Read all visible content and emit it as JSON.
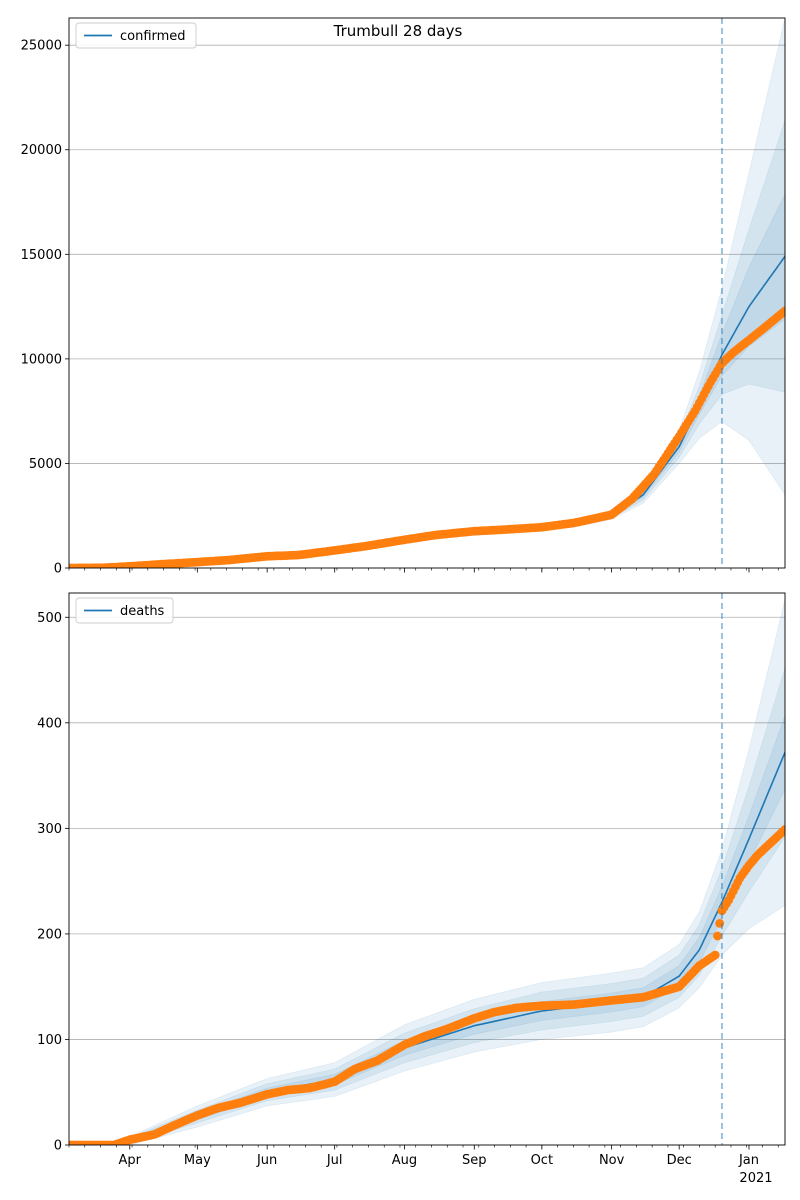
{
  "figure": {
    "title": "Trumbull 28 days",
    "x_start": "2020-03-05",
    "x_end": "2021-01-17",
    "forecast_start": "2020-12-20",
    "months": [
      {
        "label": "Apr",
        "date": "2020-04-01"
      },
      {
        "label": "May",
        "date": "2020-05-01"
      },
      {
        "label": "Jun",
        "date": "2020-06-01"
      },
      {
        "label": "Jul",
        "date": "2020-07-01"
      },
      {
        "label": "Aug",
        "date": "2020-08-01"
      },
      {
        "label": "Sep",
        "date": "2020-09-01"
      },
      {
        "label": "Oct",
        "date": "2020-10-01"
      },
      {
        "label": "Nov",
        "date": "2020-11-01"
      },
      {
        "label": "Dec",
        "date": "2020-12-01"
      },
      {
        "label": "Jan",
        "date": "2021-01-01"
      }
    ],
    "year_label": "2021",
    "colors": {
      "line": "#1f77b4",
      "points": "#ff7f0e",
      "band": "#1f77b4",
      "grid": "#b0b0b0"
    }
  },
  "chart_data": [
    {
      "type": "line",
      "legend": "confirmed",
      "legend_position": "top-left",
      "grid": "y",
      "ylim": [
        0,
        26300
      ],
      "yticks": [
        0,
        5000,
        10000,
        15000,
        20000,
        25000
      ],
      "observed": [
        [
          "2020-03-05",
          0
        ],
        [
          "2020-03-20",
          10
        ],
        [
          "2020-04-01",
          80
        ],
        [
          "2020-04-15",
          180
        ],
        [
          "2020-05-01",
          280
        ],
        [
          "2020-05-15",
          380
        ],
        [
          "2020-06-01",
          560
        ],
        [
          "2020-06-15",
          620
        ],
        [
          "2020-07-01",
          840
        ],
        [
          "2020-07-15",
          1050
        ],
        [
          "2020-08-01",
          1350
        ],
        [
          "2020-08-15",
          1580
        ],
        [
          "2020-09-01",
          1760
        ],
        [
          "2020-09-15",
          1840
        ],
        [
          "2020-10-01",
          1950
        ],
        [
          "2020-10-15",
          2150
        ],
        [
          "2020-11-01",
          2550
        ],
        [
          "2020-11-10",
          3300
        ],
        [
          "2020-11-20",
          4500
        ],
        [
          "2020-12-01",
          6300
        ],
        [
          "2020-12-08",
          7500
        ],
        [
          "2020-12-15",
          8900
        ],
        [
          "2020-12-20",
          9800
        ],
        [
          "2020-12-25",
          10300
        ],
        [
          "2021-01-01",
          10900
        ],
        [
          "2021-01-08",
          11500
        ],
        [
          "2021-01-17",
          12300
        ]
      ],
      "model": [
        [
          "2020-03-05",
          0
        ],
        [
          "2020-04-01",
          60
        ],
        [
          "2020-05-01",
          280
        ],
        [
          "2020-06-01",
          560
        ],
        [
          "2020-07-01",
          860
        ],
        [
          "2020-08-01",
          1380
        ],
        [
          "2020-09-01",
          1760
        ],
        [
          "2020-10-01",
          1950
        ],
        [
          "2020-11-01",
          2500
        ],
        [
          "2020-11-15",
          3500
        ],
        [
          "2020-12-01",
          5800
        ],
        [
          "2020-12-10",
          7800
        ],
        [
          "2020-12-20",
          10200
        ],
        [
          "2021-01-01",
          12500
        ],
        [
          "2021-01-17",
          14900
        ]
      ],
      "bands": {
        "dates": [
          "2020-10-20",
          "2020-11-01",
          "2020-11-15",
          "2020-12-01",
          "2020-12-10",
          "2020-12-20",
          "2021-01-01",
          "2021-01-17"
        ],
        "center": [
          2150,
          2500,
          3500,
          5800,
          7800,
          10200,
          12500,
          14900
        ],
        "inner": [
          30,
          60,
          120,
          250,
          450,
          1000,
          1900,
          3000
        ],
        "middle": [
          60,
          120,
          250,
          500,
          900,
          1900,
          3700,
          6500
        ],
        "outer": [
          90,
          180,
          400,
          800,
          1600,
          3200,
          6400,
          11400
        ]
      }
    },
    {
      "type": "line",
      "legend": "deaths",
      "legend_position": "top-left",
      "grid": "y",
      "ylim": [
        0,
        523
      ],
      "yticks": [
        0,
        100,
        200,
        300,
        400,
        500
      ],
      "observed": [
        [
          "2020-03-05",
          0
        ],
        [
          "2020-03-25",
          0
        ],
        [
          "2020-04-01",
          5
        ],
        [
          "2020-04-12",
          10
        ],
        [
          "2020-04-20",
          18
        ],
        [
          "2020-05-01",
          28
        ],
        [
          "2020-05-10",
          35
        ],
        [
          "2020-05-20",
          40
        ],
        [
          "2020-06-01",
          48
        ],
        [
          "2020-06-10",
          52
        ],
        [
          "2020-06-20",
          54
        ],
        [
          "2020-07-01",
          60
        ],
        [
          "2020-07-10",
          72
        ],
        [
          "2020-07-20",
          80
        ],
        [
          "2020-08-01",
          95
        ],
        [
          "2020-08-10",
          103
        ],
        [
          "2020-08-20",
          110
        ],
        [
          "2020-09-01",
          120
        ],
        [
          "2020-09-10",
          126
        ],
        [
          "2020-09-20",
          130
        ],
        [
          "2020-10-01",
          132
        ],
        [
          "2020-10-15",
          133
        ],
        [
          "2020-11-01",
          137
        ],
        [
          "2020-11-15",
          140
        ],
        [
          "2020-12-01",
          150
        ],
        [
          "2020-12-10",
          170
        ],
        [
          "2020-12-17",
          180
        ],
        [
          "2020-12-18",
          198
        ],
        [
          "2020-12-20",
          222
        ],
        [
          "2020-12-23",
          232
        ],
        [
          "2020-12-28",
          253
        ],
        [
          "2021-01-01",
          265
        ],
        [
          "2021-01-05",
          275
        ],
        [
          "2021-01-10",
          285
        ],
        [
          "2021-01-17",
          299
        ]
      ],
      "model": [
        [
          "2020-03-05",
          0
        ],
        [
          "2020-03-25",
          0
        ],
        [
          "2020-04-01",
          4
        ],
        [
          "2020-04-15",
          14
        ],
        [
          "2020-05-01",
          27
        ],
        [
          "2020-06-01",
          50
        ],
        [
          "2020-07-01",
          62
        ],
        [
          "2020-08-01",
          92
        ],
        [
          "2020-09-01",
          113
        ],
        [
          "2020-10-01",
          127
        ],
        [
          "2020-11-01",
          135
        ],
        [
          "2020-11-15",
          140
        ],
        [
          "2020-12-01",
          160
        ],
        [
          "2020-12-10",
          185
        ],
        [
          "2020-12-20",
          230
        ],
        [
          "2021-01-01",
          290
        ],
        [
          "2021-01-17",
          372
        ]
      ],
      "bands": {
        "dates": [
          "2020-04-01",
          "2020-05-01",
          "2020-06-01",
          "2020-07-01",
          "2020-08-01",
          "2020-09-01",
          "2020-10-01",
          "2020-11-01",
          "2020-11-15",
          "2020-12-01",
          "2020-12-10",
          "2020-12-20",
          "2021-01-01",
          "2021-01-17"
        ],
        "center": [
          4,
          27,
          50,
          62,
          92,
          113,
          127,
          135,
          140,
          160,
          185,
          230,
          290,
          372
        ],
        "inner": [
          2,
          3,
          4,
          5,
          7,
          8,
          9,
          9,
          9,
          10,
          12,
          15,
          22,
          35
        ],
        "middle": [
          3,
          6,
          8,
          10,
          14,
          16,
          18,
          18,
          18,
          20,
          24,
          32,
          50,
          80
        ],
        "outer": [
          4,
          10,
          13,
          16,
          22,
          25,
          27,
          28,
          28,
          30,
          36,
          50,
          85,
          145
        ]
      }
    }
  ]
}
